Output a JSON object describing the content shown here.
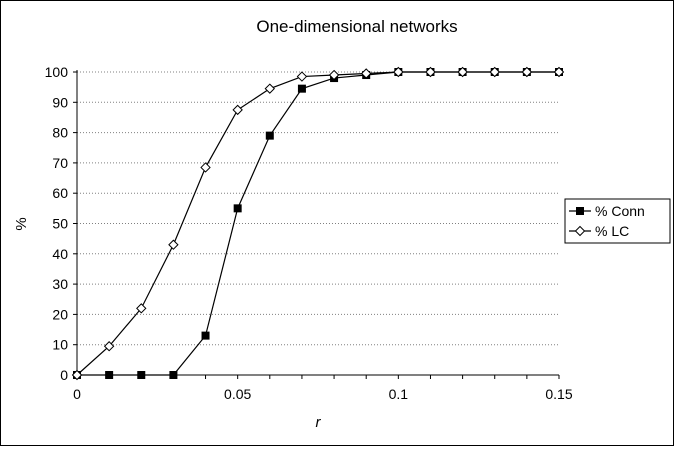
{
  "chart_data": {
    "type": "line",
    "title": "One-dimensional networks",
    "xlabel": "r",
    "ylabel": "%",
    "xlim": [
      0,
      0.15
    ],
    "ylim": [
      0,
      100
    ],
    "x_ticks": [
      0,
      0.05,
      0.1,
      0.15
    ],
    "x_tick_labels": [
      "0",
      "0.05",
      "0.1",
      "0.15"
    ],
    "y_ticks": [
      0,
      10,
      20,
      30,
      40,
      50,
      60,
      70,
      80,
      90,
      100
    ],
    "y_tick_labels": [
      "0",
      "10",
      "20",
      "30",
      "40",
      "50",
      "60",
      "70",
      "80",
      "90",
      "100"
    ],
    "grid": "horizontal-dotted",
    "legend_position": "right",
    "x": [
      0,
      0.01,
      0.02,
      0.03,
      0.04,
      0.05,
      0.06,
      0.07,
      0.08,
      0.09,
      0.1,
      0.11,
      0.12,
      0.13,
      0.14,
      0.15
    ],
    "series": [
      {
        "name": "% Conn",
        "marker": "filled-square",
        "color": "#000000",
        "values": [
          0,
          0,
          0,
          0,
          13,
          55,
          79,
          94.5,
          98,
          99,
          100,
          100,
          100,
          100,
          100,
          100
        ]
      },
      {
        "name": "% LC",
        "marker": "open-diamond",
        "color": "#000000",
        "values": [
          0,
          9.5,
          22,
          43,
          68.5,
          87.5,
          94.5,
          98.5,
          99,
          99.5,
          100,
          100,
          100,
          100,
          100,
          100
        ]
      }
    ]
  }
}
